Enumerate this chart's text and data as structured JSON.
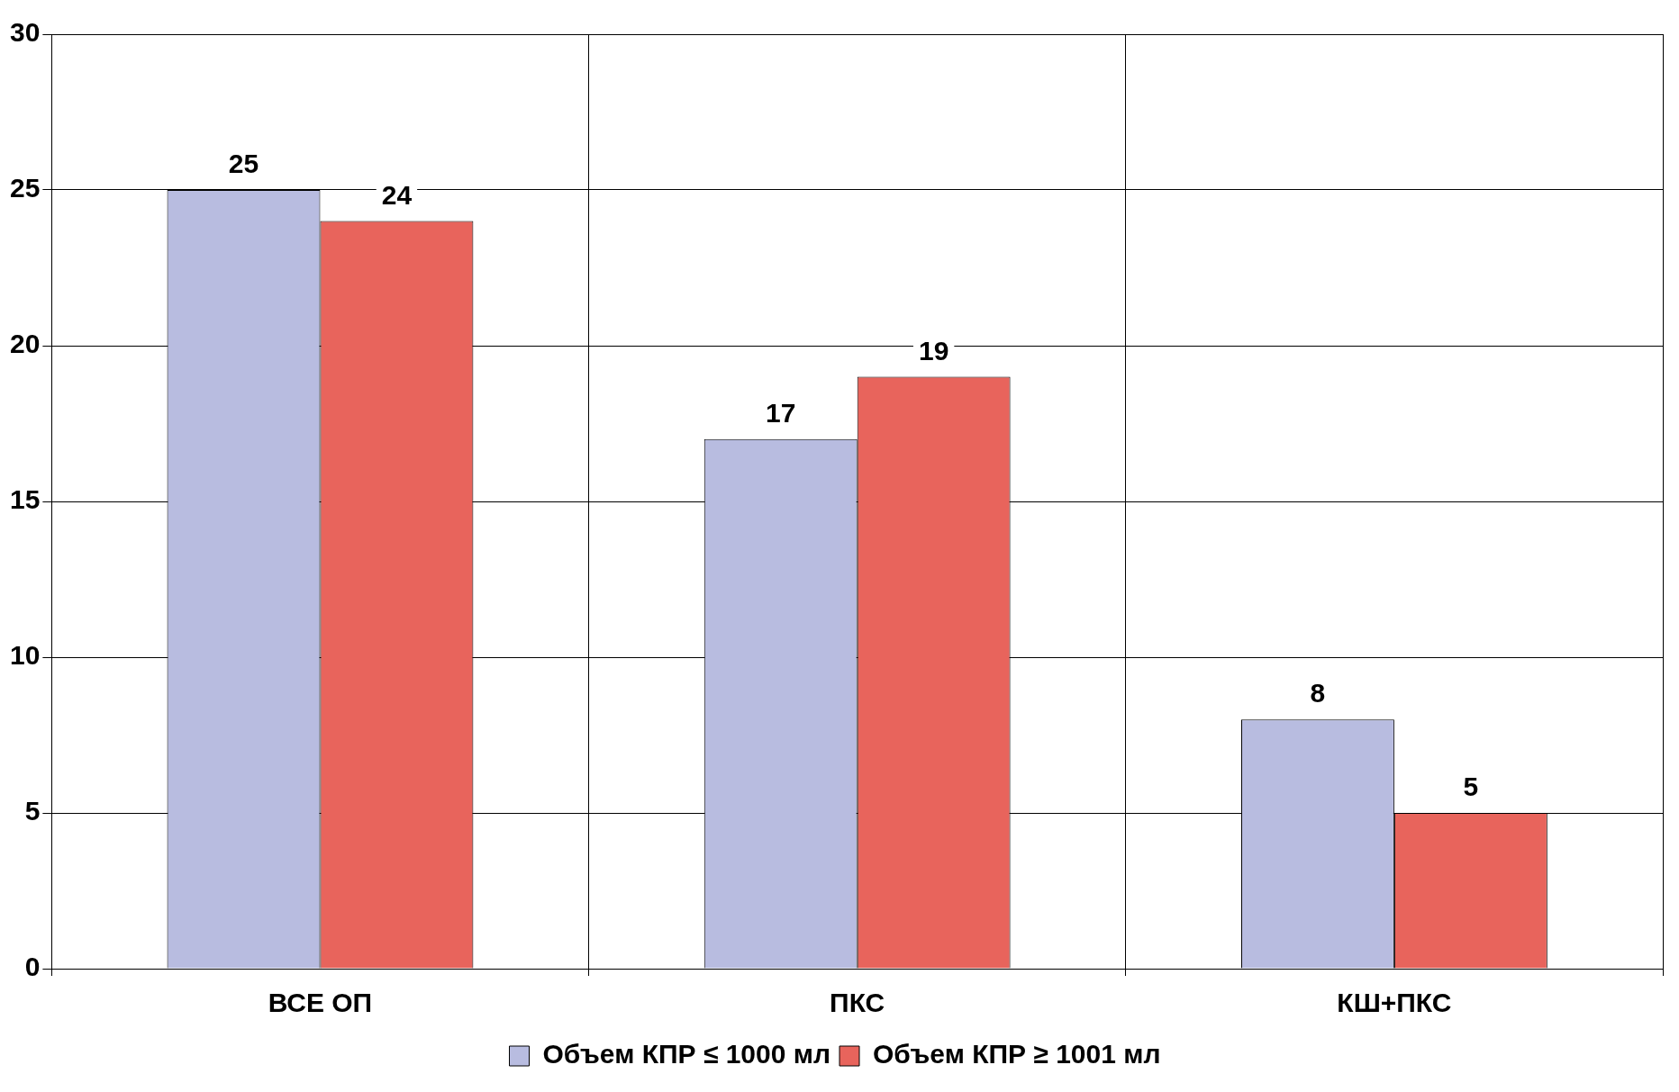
{
  "chart_data": {
    "type": "bar",
    "categories": [
      "ВСЕ ОП",
      "ПКС",
      "КШ+ПКС"
    ],
    "series": [
      {
        "name": "Объем КПР ≤ 1000 мл",
        "color": "#b8bce0",
        "values": [
          25,
          17,
          8
        ]
      },
      {
        "name": "Объем КПР ≥ 1001 мл",
        "color": "#e8645c",
        "values": [
          24,
          19,
          5
        ]
      }
    ],
    "ylim": [
      0,
      30
    ],
    "yticks": [
      0,
      5,
      10,
      15,
      20,
      25,
      30
    ],
    "grid": true,
    "legend": "bottom",
    "data_labels": true
  }
}
